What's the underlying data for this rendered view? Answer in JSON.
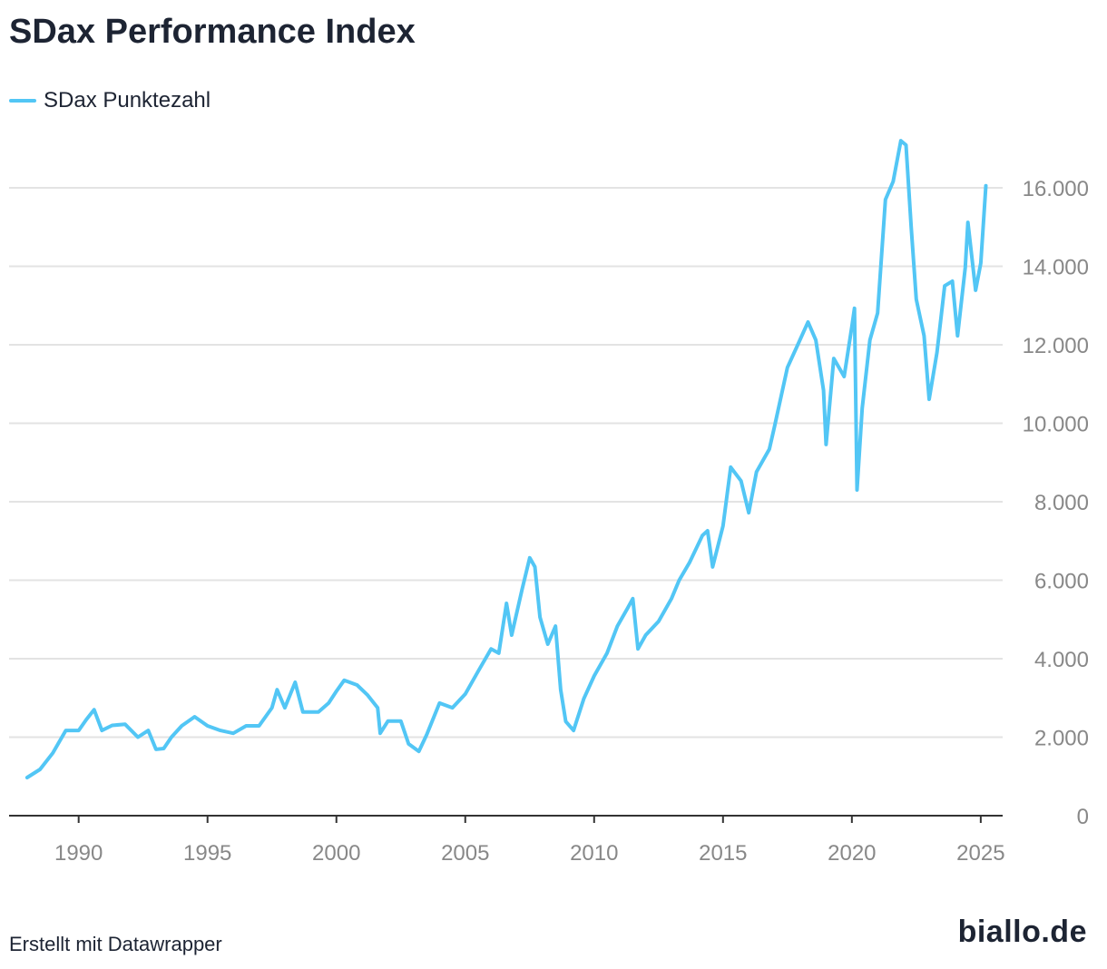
{
  "title": "SDax Performance Index",
  "footer": "Erstellt mit Datawrapper",
  "logo": "biallo.de",
  "colors": {
    "line": "#52c6f5",
    "grid": "#e3e3e3",
    "text": "#1d2433",
    "tick": "#888888"
  },
  "chart_data": {
    "type": "line",
    "title": "SDax Performance Index",
    "xlabel": "",
    "ylabel": "",
    "xlim": [
      1987.3,
      2025.85
    ],
    "ylim": [
      0,
      16000
    ],
    "grid": true,
    "legend_position": "top-left",
    "x_ticks": [
      1990,
      1995,
      2000,
      2005,
      2010,
      2015,
      2020,
      2025
    ],
    "x_tick_labels": [
      "1990",
      "1995",
      "2000",
      "2005",
      "2010",
      "2015",
      "2020",
      "2025"
    ],
    "y_ticks": [
      0,
      2000,
      4000,
      6000,
      8000,
      10000,
      12000,
      14000,
      16000
    ],
    "y_tick_labels": [
      "0",
      "2.000",
      "4.000",
      "6.000",
      "8.000",
      "10.000",
      "12.000",
      "14.000",
      "16.000"
    ],
    "series": [
      {
        "name": "SDax Punktezahl",
        "x": [
          1988.0,
          1988.5,
          1989.0,
          1989.5,
          1990.0,
          1990.3,
          1990.6,
          1990.9,
          1991.3,
          1991.8,
          1992.3,
          1992.7,
          1993.0,
          1993.3,
          1993.6,
          1994.0,
          1994.5,
          1995.0,
          1995.5,
          1996.0,
          1996.5,
          1997.0,
          1997.5,
          1997.7,
          1998.0,
          1998.4,
          1998.7,
          1999.3,
          1999.7,
          2000.0,
          2000.3,
          2000.8,
          2001.2,
          2001.6,
          2001.7,
          2002.0,
          2002.5,
          2002.8,
          2003.2,
          2003.5,
          2004.0,
          2004.5,
          2005.0,
          2005.5,
          2006.0,
          2006.3,
          2006.6,
          2006.8,
          2007.2,
          2007.5,
          2007.7,
          2007.9,
          2008.2,
          2008.5,
          2008.7,
          2008.9,
          2009.2,
          2009.6,
          2010.0,
          2010.5,
          2010.9,
          2011.3,
          2011.5,
          2011.7,
          2012.0,
          2012.5,
          2013.0,
          2013.3,
          2013.7,
          2014.2,
          2014.4,
          2014.6,
          2015.0,
          2015.3,
          2015.7,
          2016.0,
          2016.3,
          2016.8,
          2017.0,
          2017.5,
          2017.9,
          2018.3,
          2018.6,
          2018.9,
          2019.0,
          2019.3,
          2019.7,
          2020.0,
          2020.1,
          2020.2,
          2020.4,
          2020.7,
          2021.0,
          2021.3,
          2021.6,
          2021.9,
          2022.1,
          2022.3,
          2022.5,
          2022.8,
          2023.0,
          2023.3,
          2023.6,
          2023.9,
          2024.1,
          2024.4,
          2024.5,
          2024.8,
          2025.0,
          2025.2
        ],
        "values": [
          970,
          1180,
          1600,
          2170,
          2170,
          2450,
          2700,
          2170,
          2300,
          2330,
          2000,
          2170,
          1690,
          1710,
          2000,
          2290,
          2520,
          2290,
          2170,
          2100,
          2290,
          2290,
          2750,
          3210,
          2750,
          3400,
          2640,
          2640,
          2870,
          3170,
          3450,
          3330,
          3080,
          2750,
          2100,
          2410,
          2410,
          1830,
          1640,
          2060,
          2870,
          2750,
          3100,
          3680,
          4250,
          4140,
          5410,
          4600,
          5760,
          6570,
          6340,
          5060,
          4370,
          4830,
          3210,
          2400,
          2170,
          2980,
          3560,
          4140,
          4830,
          5290,
          5530,
          4250,
          4600,
          4950,
          5530,
          6000,
          6450,
          7140,
          7260,
          6340,
          7380,
          8880,
          8530,
          7720,
          8760,
          9340,
          9920,
          11420,
          12000,
          12580,
          12120,
          10840,
          9460,
          11650,
          11190,
          12460,
          12930,
          8300,
          10380,
          12120,
          12810,
          15700,
          16160,
          17200,
          17090,
          15000,
          13160,
          12230,
          10610,
          11800,
          13500,
          13620,
          12230,
          13970,
          15120,
          13390,
          14080,
          16050
        ]
      }
    ]
  }
}
